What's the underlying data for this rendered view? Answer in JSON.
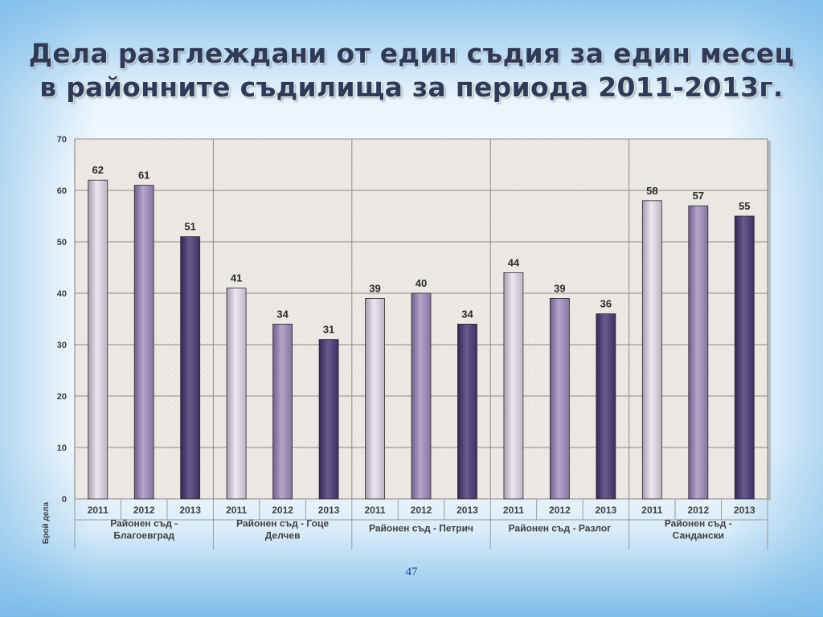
{
  "slide": {
    "title_line1": "Дела разглеждани от един съдия за един месец",
    "title_line2": "в районните съдилища за периода 2011-2013г.",
    "page_number": "47"
  },
  "chart_data": {
    "type": "bar",
    "ylabel": "Брой дела",
    "ylim": [
      0,
      70
    ],
    "yticks": [
      0,
      10,
      20,
      30,
      40,
      50,
      60,
      70
    ],
    "grid": true,
    "legend": "none",
    "groups": [
      {
        "label_lines": [
          "Районен съд -",
          "Благоевград"
        ],
        "categories": [
          "2011",
          "2012",
          "2013"
        ],
        "values": [
          62,
          61,
          51
        ]
      },
      {
        "label_lines": [
          "Районен съд - Гоце",
          "Делчев"
        ],
        "categories": [
          "2011",
          "2012",
          "2013"
        ],
        "values": [
          41,
          34,
          31
        ]
      },
      {
        "label_lines": [
          "Районен съд - Петрич"
        ],
        "categories": [
          "2011",
          "2012",
          "2013"
        ],
        "values": [
          39,
          40,
          34
        ]
      },
      {
        "label_lines": [
          "Районен съд - Разлог"
        ],
        "categories": [
          "2011",
          "2012",
          "2013"
        ],
        "values": [
          44,
          39,
          36
        ]
      },
      {
        "label_lines": [
          "Районен съд -",
          "Сандански"
        ],
        "categories": [
          "2011",
          "2012",
          "2013"
        ],
        "values": [
          58,
          57,
          55
        ]
      }
    ],
    "colors": {
      "year_2011": "#d2cada",
      "year_2012": "#9a88b4",
      "year_2013": "#4e3e72",
      "plot_background": "#eeebe6",
      "grid": "#8a8a8a"
    }
  }
}
